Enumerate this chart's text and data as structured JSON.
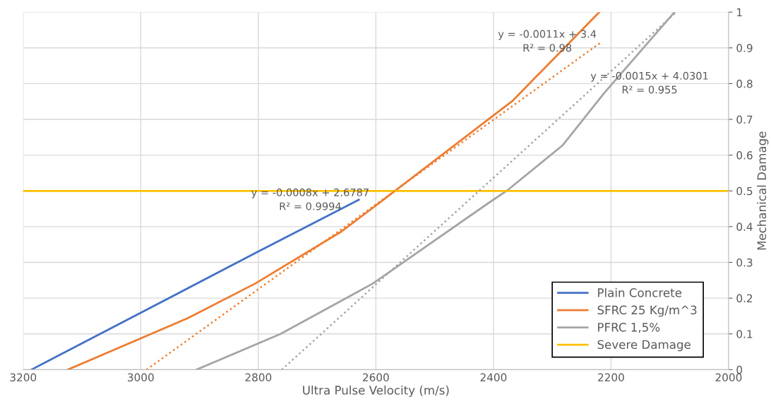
{
  "chart_data": {
    "type": "line",
    "xlabel": "Ultra Pulse Velocity (m/s)",
    "ylabel": "Mechanical Damage",
    "xlim": [
      3200,
      2000
    ],
    "xticks": [
      3200,
      3000,
      2800,
      2600,
      2400,
      2200,
      2000
    ],
    "ylim": [
      0,
      1
    ],
    "yticks": [
      0,
      0.1,
      0.2,
      0.3,
      0.4,
      0.5,
      0.6,
      0.7,
      0.8,
      0.9,
      1
    ],
    "grid": true,
    "legend": "bottom right",
    "marker": "none",
    "series": [
      {
        "name": "Plain Concrete",
        "color": "#4472c4",
        "x": [
          3186,
          2805,
          2629
        ],
        "values": [
          0,
          0.326,
          0.475
        ]
      },
      {
        "name": "SFRC 25 Kg/m^3",
        "color": "#ed7d31",
        "x": [
          3124,
          2920,
          2805,
          2658,
          2588,
          2409,
          2368,
          2220
        ],
        "values": [
          0,
          0.144,
          0.241,
          0.387,
          0.474,
          0.7,
          0.751,
          1.0
        ]
      },
      {
        "name": "PFRC 1,5%",
        "color": "#a5a5a5",
        "x": [
          2905,
          2762,
          2605,
          2412,
          2376,
          2282,
          2212,
          2092
        ],
        "values": [
          0,
          0.1,
          0.241,
          0.462,
          0.502,
          0.628,
          0.773,
          1.0
        ]
      },
      {
        "name": "Severe Damage",
        "color": "#ffc000",
        "x": [
          3200,
          2000
        ],
        "values": [
          0.5,
          0.5
        ]
      },
      {
        "color": "#ed7d31",
        "line_style": "dotted",
        "x": [
          2990,
          2215
        ],
        "values": [
          0,
          0.918
        ]
      },
      {
        "color": "#a5a5a5",
        "line_style": "dotted",
        "x": [
          2760,
          2089
        ],
        "values": [
          0,
          1.0
        ]
      }
    ],
    "annotations": [
      "y = -0.0008x + 2.6787\nR² = 0.9994",
      "y = -0.0011x + 3.4\nR² = 0.98",
      "y = -0.0015x + 4.0301\nR² = 0.955"
    ]
  }
}
